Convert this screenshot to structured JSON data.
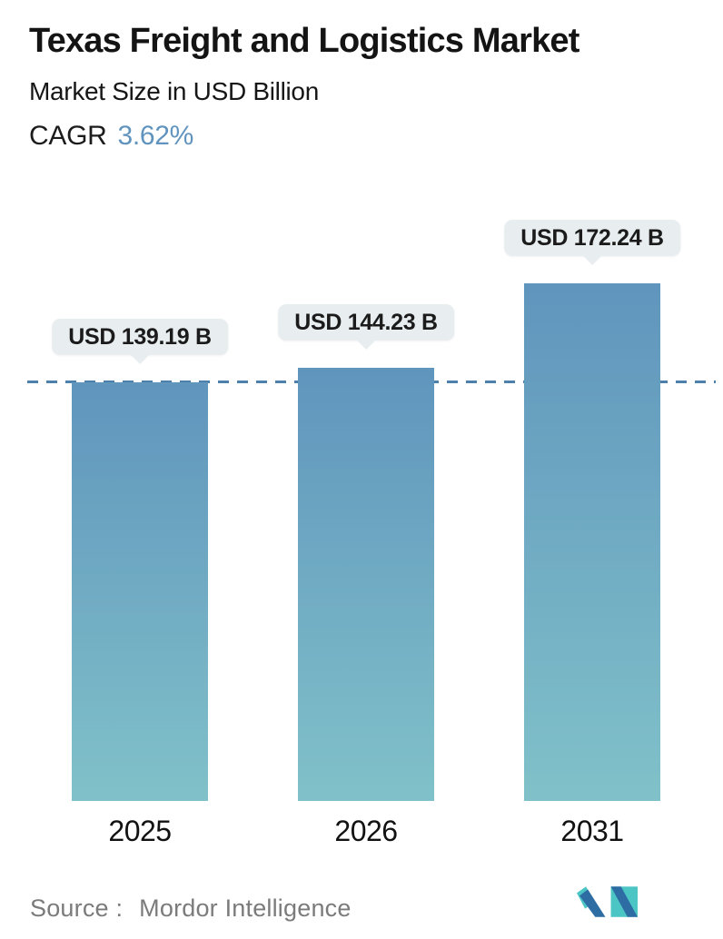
{
  "header": {
    "title": "Texas Freight and Logistics Market",
    "subtitle": "Market Size in USD Billion",
    "cagr_label": "CAGR",
    "cagr_value": "3.62%"
  },
  "chart_data": {
    "type": "bar",
    "categories": [
      "2025",
      "2026",
      "2031"
    ],
    "values": [
      139.19,
      144.23,
      172.24
    ],
    "bar_labels": [
      "USD 139.19 B",
      "USD 144.23 B",
      "USD 172.24 B"
    ],
    "title": "Texas Freight and Logistics Market",
    "subtitle": "Market Size in USD Billion",
    "cagr": "3.62%",
    "unit": "USD Billion",
    "ylim": [
      0,
      190
    ],
    "grid": false,
    "legend": false,
    "reference_line_value": 139.19,
    "reference_line_style": "dashed",
    "colors": {
      "bar_gradient_top": "#6095bd",
      "bar_gradient_bottom": "#80c1c9",
      "dashed_line": "#4d80ab",
      "callout_bg": "#e8eef0",
      "callout_text": "#1b1b1b",
      "cagr_value": "#6094bf",
      "source_text": "#7b7b7b",
      "logo_teal": "#4cc5c5",
      "logo_blue": "#2e6da4"
    }
  },
  "footer": {
    "source_label": "Source :",
    "source_value": "Mordor Intelligence",
    "logo": "mordor-intelligence-logo"
  }
}
